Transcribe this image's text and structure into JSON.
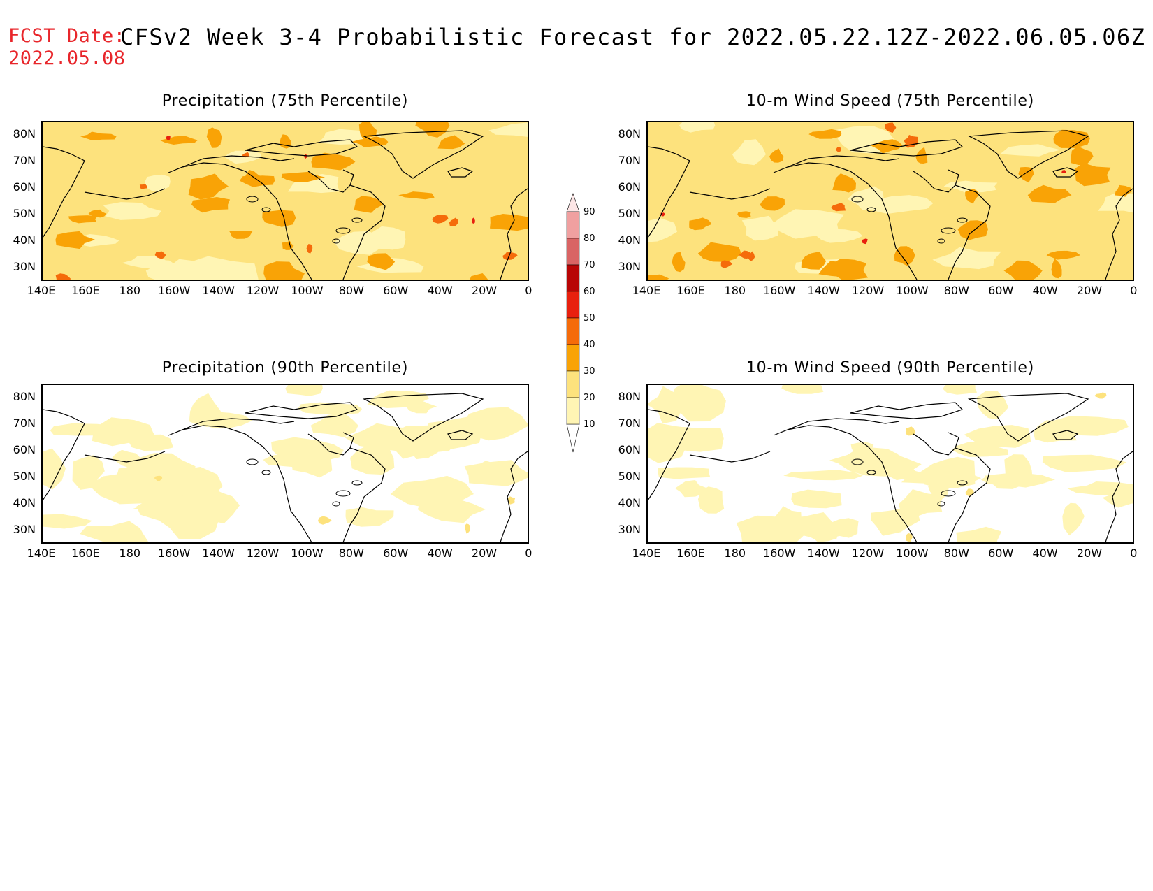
{
  "header": {
    "fcst_label": "FCST Date:",
    "fcst_date": "2022.05.08",
    "title": "CFSv2 Week 3-4 Probabilistic Forecast for 2022.05.22.12Z-2022.06.05.06Z"
  },
  "panels": [
    {
      "title": "Precipitation (75th Percentile)",
      "intensity": "high"
    },
    {
      "title": "10-m Wind Speed (75th Percentile)",
      "intensity": "high"
    },
    {
      "title": "Precipitation (90th Percentile)",
      "intensity": "low"
    },
    {
      "title": "10-m Wind Speed (90th Percentile)",
      "intensity": "low"
    }
  ],
  "lat_ticks": [
    "80N",
    "70N",
    "60N",
    "50N",
    "40N",
    "30N"
  ],
  "lon_ticks": [
    "140E",
    "160E",
    "180",
    "160W",
    "140W",
    "120W",
    "100W",
    "80W",
    "60W",
    "40W",
    "20W",
    "0"
  ],
  "colorbar": {
    "levels": [
      "10",
      "20",
      "30",
      "40",
      "50",
      "60",
      "70",
      "80",
      "90"
    ],
    "colors": [
      "#fff5b4",
      "#fde27d",
      "#f9a306",
      "#f56b0a",
      "#e8200e",
      "#b80505",
      "#d96464",
      "#f0a0a0"
    ]
  }
}
